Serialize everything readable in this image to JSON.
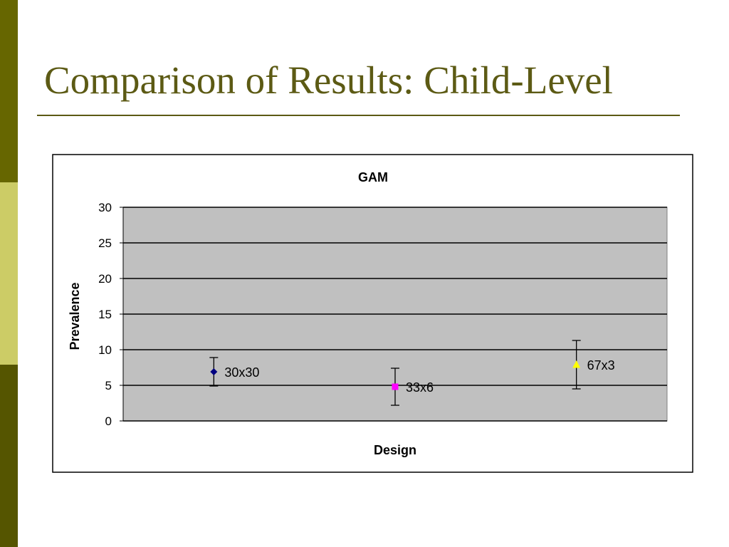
{
  "slide": {
    "title": "Comparison of Results: Child-Level"
  },
  "chart_data": {
    "type": "errorbar",
    "title": "GAM",
    "x_label": "Design",
    "y_label": "Prevalence",
    "categories": [
      "30x30",
      "33x6",
      "67x3"
    ],
    "values": [
      6.9,
      4.8,
      7.9
    ],
    "errors": [
      2,
      2.6,
      3.4
    ],
    "colors": [
      "#000080",
      "#ff00ff",
      "#ffff00"
    ],
    "markers": [
      "diamond",
      "square",
      "triangle"
    ],
    "ylim": [
      0,
      30
    ],
    "yticks": [
      0,
      5,
      10,
      15,
      20,
      25,
      30
    ],
    "grid": true,
    "plot_background": "#c0c0c0"
  }
}
